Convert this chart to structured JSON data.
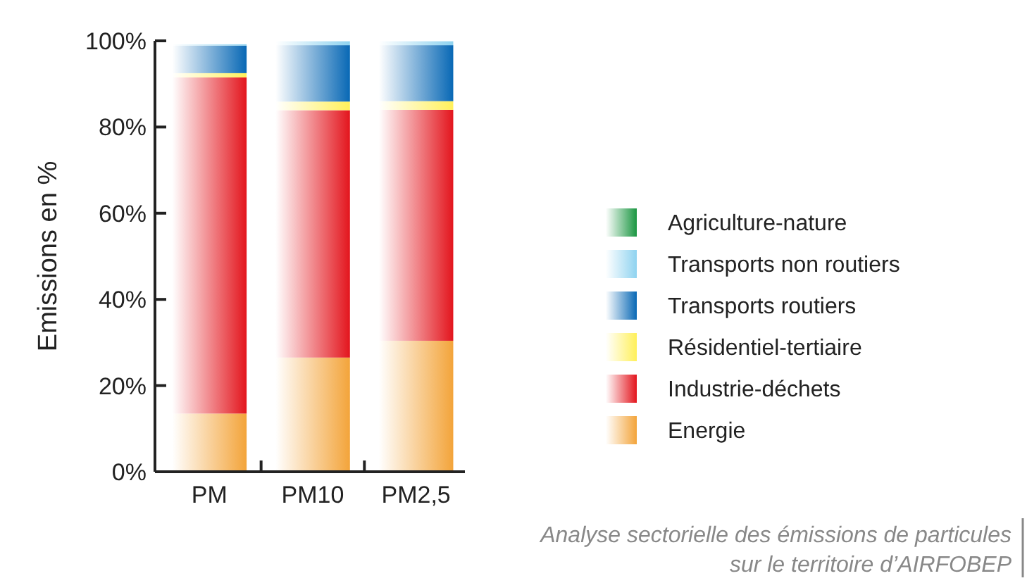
{
  "chart_data": {
    "type": "bar",
    "stacked": true,
    "ylabel": "Emissions en %",
    "categories": [
      "PM",
      "PM10",
      "PM2,5"
    ],
    "series": [
      {
        "name": "Energie",
        "color": "#f3a43a",
        "values": [
          13.5,
          26.5,
          30.4
        ]
      },
      {
        "name": "Industrie-déchets",
        "color": "#e3151d",
        "values": [
          78,
          57.4,
          53.6
        ]
      },
      {
        "name": "Résidentiel-tertiaire",
        "color": "#fff05a",
        "values": [
          1,
          2,
          2
        ]
      },
      {
        "name": "Transports routiers",
        "color": "#0868b5",
        "values": [
          6.4,
          13.1,
          13
        ]
      },
      {
        "name": "Transports non routiers",
        "color": "#8fd3f0",
        "values": [
          0.3,
          0.9,
          0.9
        ]
      },
      {
        "name": "Agriculture-nature",
        "color": "#1a9641",
        "values": [
          0,
          0,
          0
        ]
      }
    ],
    "ylim": [
      0,
      100
    ],
    "yticks": [
      {
        "value": 0,
        "label": "0%"
      },
      {
        "value": 20,
        "label": "20%"
      },
      {
        "value": 40,
        "label": "40%"
      },
      {
        "value": 60,
        "label": "60%"
      },
      {
        "value": 80,
        "label": "80%"
      },
      {
        "value": 100,
        "label": "100%"
      }
    ],
    "legend": "right",
    "annotations": [
      "Analyse sectorielle des émissions de particules",
      "sur le territoire d’AIRFOBEP"
    ]
  }
}
